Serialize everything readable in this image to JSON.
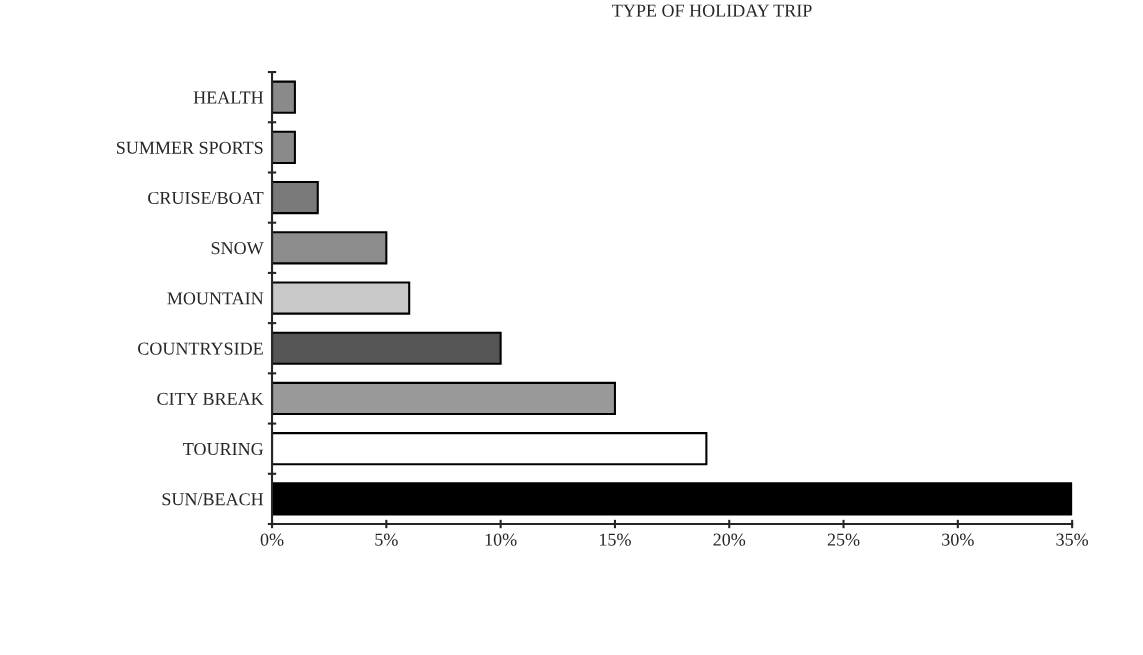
{
  "chart_data": {
    "type": "bar",
    "orientation": "horizontal",
    "title": "TYPE OF HOLIDAY TRIP",
    "categories": [
      "HEALTH",
      "SUMMER SPORTS",
      "CRUISE/BOAT",
      "SNOW",
      "MOUNTAIN",
      "COUNTRYSIDE",
      "CITY BREAK",
      "TOURING",
      "SUN/BEACH"
    ],
    "values": [
      1,
      1,
      2,
      5,
      6,
      10,
      15,
      19,
      35
    ],
    "colors": [
      "#8a8a8a",
      "#8a8a8a",
      "#7a7a7a",
      "#8c8c8c",
      "#c8c8c8",
      "#555555",
      "#999999",
      "#ffffff",
      "#000000"
    ],
    "xlim": [
      0,
      35
    ],
    "xticks": [
      {
        "value": 0,
        "label": "0%"
      },
      {
        "value": 5,
        "label": "5%"
      },
      {
        "value": 10,
        "label": "10%"
      },
      {
        "value": 15,
        "label": "15%"
      },
      {
        "value": 20,
        "label": "20%"
      },
      {
        "value": 25,
        "label": "25%"
      },
      {
        "value": 30,
        "label": "30%"
      },
      {
        "value": 35,
        "label": "35%"
      }
    ],
    "grid": false,
    "legend": false
  }
}
